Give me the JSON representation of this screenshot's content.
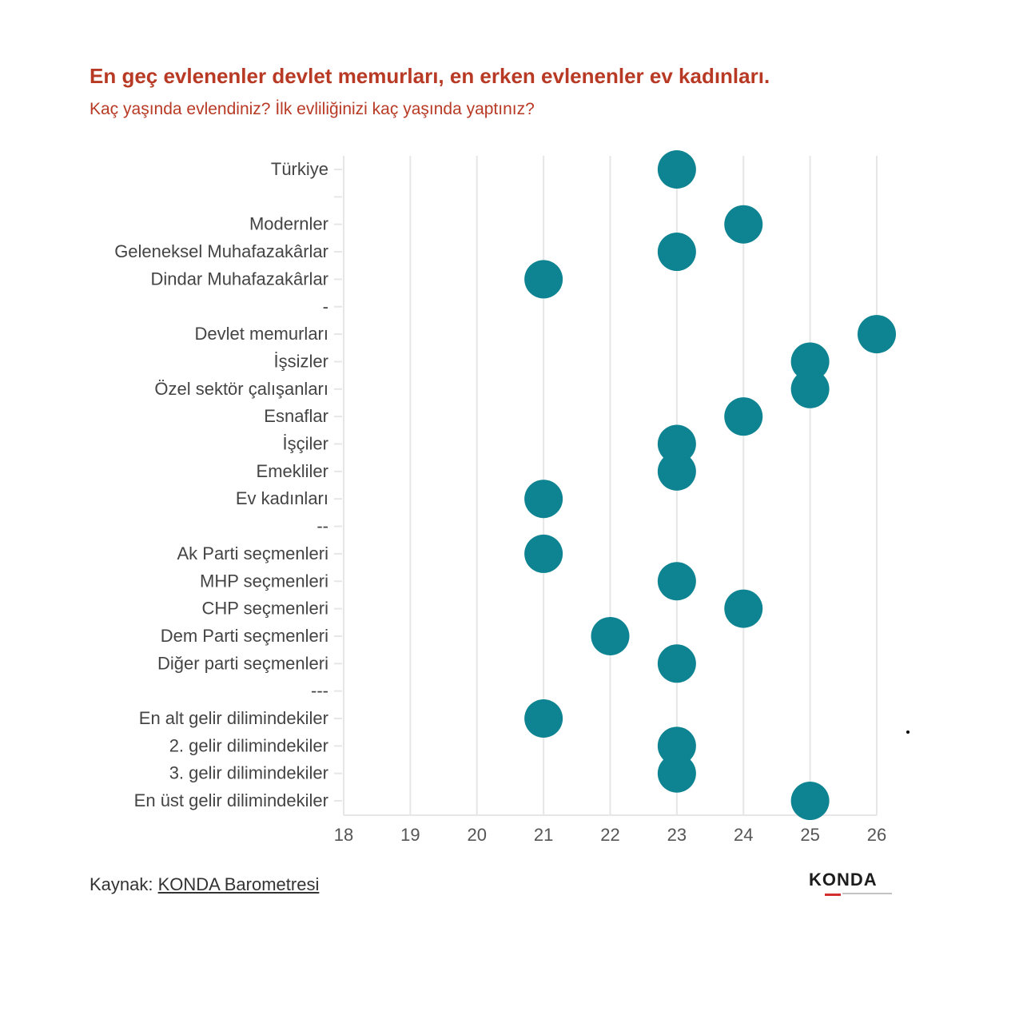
{
  "title": "En geç evlenenler devlet memurları, en erken evlenenler ev kadınları.",
  "subtitle": "Kaç yaşında evlendiniz? İlk evliliğinizi kaç yaşında yaptınız?",
  "source": {
    "label": "Kaynak: ",
    "link_text": "KONDA Barometresi"
  },
  "logo": {
    "text": "KONDA",
    "accent_color": "#d32f2f"
  },
  "colors": {
    "dot": "#0e8391",
    "grid": "#e6e6e6",
    "label": "#444444",
    "title": "#b83a25"
  },
  "chart_data": {
    "type": "scatter",
    "title": "En geç evlenenler devlet memurları, en erken evlenenler ev kadınları.",
    "subtitle": "Kaç yaşında evlendiniz? İlk evliliğinizi kaç yaşında yaptınız?",
    "xlabel": "",
    "ylabel": "",
    "xlim": [
      18,
      26
    ],
    "x_ticks": [
      18,
      19,
      20,
      21,
      22,
      23,
      24,
      25,
      26
    ],
    "grid": true,
    "categories": [
      "Türkiye",
      "",
      "Modernler",
      "Geleneksel Muhafazakârlar",
      "Dindar Muhafazakârlar",
      "-",
      "Devlet memurları",
      "İşsizler",
      "Özel sektör çalışanları",
      "Esnaflar",
      "İşçiler",
      "Emekliler",
      "Ev kadınları",
      "--",
      "Ak Parti seçmenleri",
      "MHP seçmenleri",
      "CHP seçmenleri",
      "Dem Parti seçmenleri",
      "Diğer parti seçmenleri",
      "---",
      "En alt gelir dilimindekiler",
      "2. gelir dilimindekiler",
      "3. gelir dilimindekiler",
      "En üst gelir dilimindekiler"
    ],
    "values": [
      23,
      null,
      24,
      23,
      21,
      null,
      26,
      25,
      25,
      24,
      23,
      23,
      21,
      null,
      21,
      23,
      24,
      22,
      23,
      null,
      21,
      23,
      23,
      25
    ]
  }
}
